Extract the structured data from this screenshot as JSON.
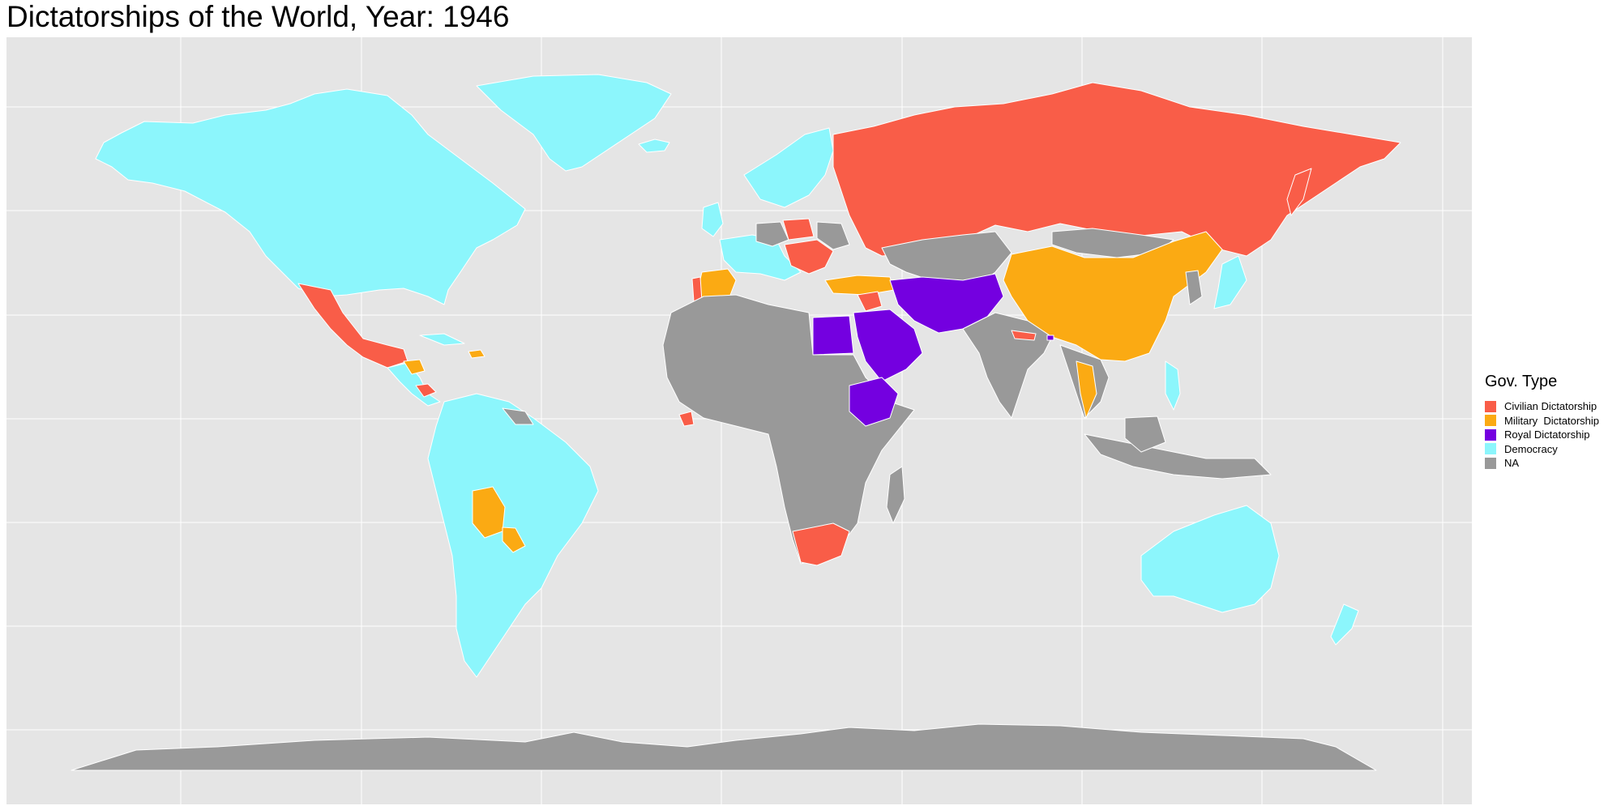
{
  "title": "Dictatorships of the World, Year: 1946",
  "legend": {
    "title": "Gov. Type",
    "items": [
      {
        "label": "Civilian Dictatorship",
        "color": "#f95d48"
      },
      {
        "label": "Military  Dictatorship",
        "color": "#fbaa13"
      },
      {
        "label": "Royal Dictatorship",
        "color": "#7400e0"
      },
      {
        "label": "Democracy",
        "color": "#8cf6fc"
      },
      {
        "label": "NA",
        "color": "#999999"
      }
    ]
  },
  "colors": {
    "panel_background": "#e5e5e5",
    "gridline": "#ffffff",
    "border": "#ffffff"
  },
  "regions": {
    "civilian": [
      "USSR",
      "Poland",
      "Hungary",
      "Romania",
      "Yugoslavia",
      "Bulgaria",
      "Portugal",
      "Mexico",
      "Nicaragua",
      "Syria",
      "Nepal",
      "South Africa",
      "Liberia",
      "Albania"
    ],
    "military": [
      "China",
      "Spain",
      "Turkey",
      "Bolivia",
      "Paraguay",
      "Honduras",
      "Thailand",
      "Dominican Republic",
      "Greece"
    ],
    "royal": [
      "Iran",
      "Afghanistan",
      "Saudi Arabia",
      "Egypt",
      "Ethiopia",
      "Iraq",
      "Jordan",
      "Yemen",
      "Bhutan"
    ],
    "democracy": [
      "USA",
      "Canada",
      "Greenland",
      "Brazil",
      "Argentina",
      "Chile",
      "Peru",
      "Colombia",
      "Venezuela",
      "Ecuador",
      "Uruguay",
      "Australia",
      "New Zealand",
      "Norway",
      "Sweden",
      "Finland",
      "France",
      "Italy",
      "United Kingdom",
      "Iceland",
      "Japan",
      "Philippines",
      "Cuba"
    ],
    "na": [
      "Africa",
      "India",
      "Indonesia",
      "Antarctica",
      "Mongolia",
      "Germany",
      "Central Asia"
    ]
  }
}
